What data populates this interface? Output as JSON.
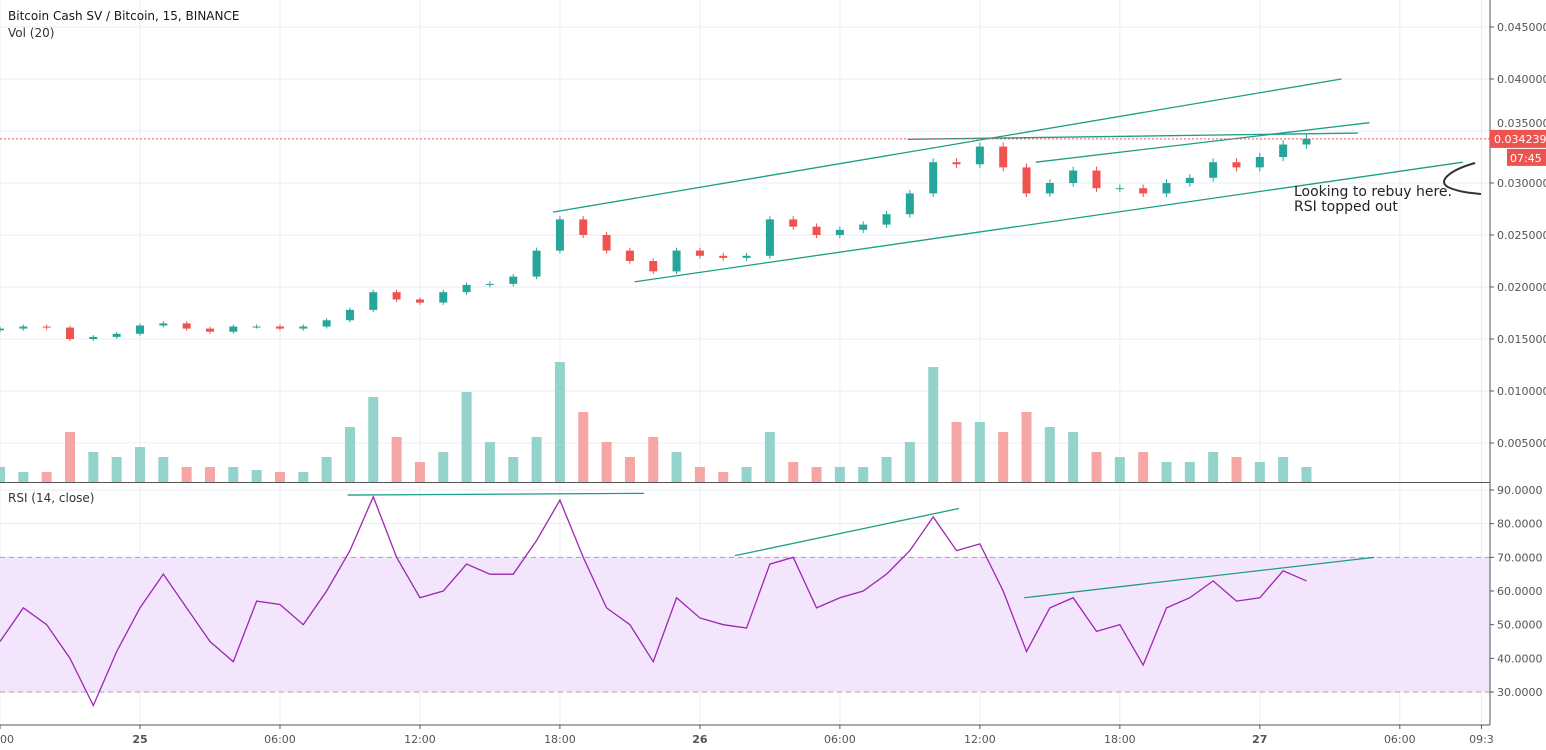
{
  "header": {
    "title": "Bitcoin Cash SV / Bitcoin, 15, BINANCE",
    "volume_label": "Vol (20)",
    "rsi_label": "RSI (14, close)"
  },
  "annotation": {
    "line1": "Looking to rebuy here.",
    "line2": "RSI topped out"
  },
  "colors": {
    "up": "#26a69a",
    "down": "#ef5350",
    "up_vol": "#94d3cc",
    "down_vol": "#f5a6a5",
    "rsi": "#9c27b0",
    "rsi_band": "#f3e5fc",
    "trendline": "#1a9e86",
    "last_price": "#ef5350",
    "grid": "#e9eef3"
  },
  "chart_data": {
    "type": "candlestick",
    "price_axis": {
      "ticks": [
        "0.045000",
        "0.040000",
        "0.035000",
        "0.030000",
        "0.025000",
        "0.020000",
        "0.015000",
        "0.010000",
        "0.005000"
      ],
      "tick_values": [
        0.045,
        0.04,
        0.035,
        0.03,
        0.025,
        0.02,
        0.015,
        0.01,
        0.005
      ]
    },
    "last_price": "0.034239",
    "countdown": "07:45",
    "time_axis": {
      "labels": [
        "00",
        "25",
        "06:00",
        "12:00",
        "18:00",
        "26",
        "06:00",
        "12:00",
        "18:00",
        "27",
        "06:00",
        "09:3"
      ],
      "label_hours": [
        0,
        6,
        12,
        18,
        24,
        30,
        36,
        42,
        48,
        54,
        60,
        63.5
      ],
      "bold": [
        "25",
        "26",
        "27"
      ]
    },
    "close": [
      0.016,
      0.0162,
      0.0161,
      0.015,
      0.0152,
      0.0155,
      0.0163,
      0.0165,
      0.016,
      0.0157,
      0.0162,
      0.0162,
      0.016,
      0.0162,
      0.0168,
      0.0178,
      0.0195,
      0.0188,
      0.0185,
      0.0195,
      0.0202,
      0.0203,
      0.021,
      0.0235,
      0.0265,
      0.025,
      0.0235,
      0.0225,
      0.0215,
      0.0235,
      0.023,
      0.0228,
      0.023,
      0.0265,
      0.0258,
      0.025,
      0.0255,
      0.026,
      0.027,
      0.029,
      0.032,
      0.0318,
      0.0335,
      0.0315,
      0.029,
      0.03,
      0.0312,
      0.0295,
      0.0295,
      0.029,
      0.03,
      0.0305,
      0.032,
      0.0315,
      0.0325,
      0.0337,
      0.03424
    ],
    "volume_relative": [
      15,
      10,
      10,
      50,
      30,
      25,
      35,
      25,
      15,
      15,
      15,
      12,
      10,
      10,
      25,
      55,
      85,
      45,
      20,
      30,
      90,
      40,
      25,
      45,
      120,
      70,
      40,
      25,
      45,
      30,
      15,
      10,
      15,
      50,
      20,
      15,
      15,
      15,
      25,
      40,
      115,
      60,
      60,
      50,
      70,
      55,
      50,
      30,
      25,
      30,
      20,
      20,
      30,
      25,
      20,
      25,
      15
    ],
    "rsi": {
      "ylim": [
        30,
        90
      ],
      "overbought": 70,
      "oversold": 30,
      "ticks": [
        "90.0000",
        "80.0000",
        "70.0000",
        "60.0000",
        "50.0000",
        "40.0000",
        "30.0000"
      ],
      "tick_values": [
        90,
        80,
        70,
        60,
        50,
        40,
        30
      ],
      "values": [
        45,
        55,
        50,
        40,
        26,
        42,
        55,
        65,
        55,
        45,
        39,
        57,
        56,
        50,
        60,
        72,
        88,
        70,
        58,
        60,
        68,
        65,
        65,
        75,
        87,
        70,
        55,
        50,
        39,
        58,
        52,
        50,
        49,
        68,
        70,
        55,
        58,
        60,
        65,
        72,
        82,
        72,
        74,
        60,
        42,
        55,
        58,
        48,
        50,
        38,
        55,
        58,
        63,
        57,
        58,
        66,
        63
      ]
    },
    "trendlines_price": [
      [
        23.7,
        0.0272,
        57.5,
        0.04
      ],
      [
        27.2,
        0.0205,
        62.7,
        0.032
      ],
      [
        38.9,
        0.0342,
        58.2,
        0.0348
      ],
      [
        44.4,
        0.032,
        58.7,
        0.0358
      ]
    ],
    "trendlines_rsi": [
      [
        14.9,
        88.5,
        27.6,
        89
      ],
      [
        31.5,
        70.5,
        41.1,
        84.5
      ],
      [
        43.9,
        58,
        58.9,
        70
      ]
    ]
  }
}
